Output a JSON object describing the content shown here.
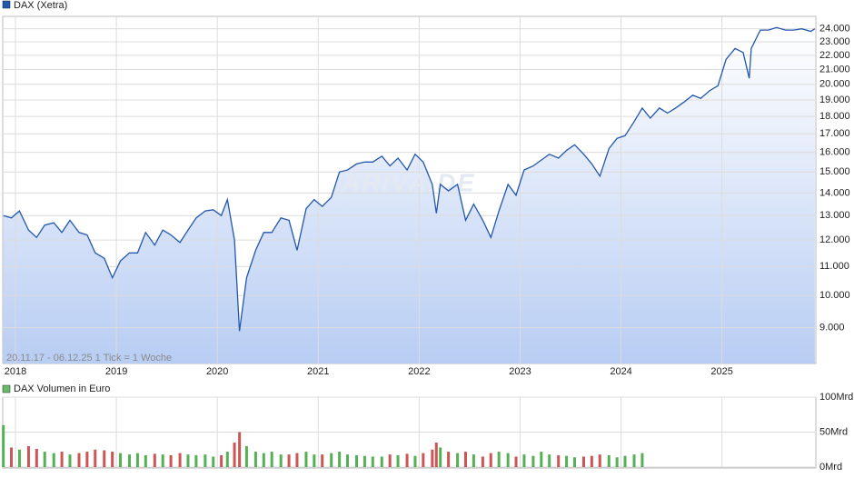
{
  "chart_data": [
    {
      "type": "line",
      "title": "DAX (Xetra)",
      "annotation": "20.11.17 - 06.12.25   1 Tick = 1 Woche",
      "watermark": "ARIVA.DE",
      "color": "#2257ad",
      "log_scale": true,
      "grid": true,
      "x": [
        2017.88,
        2017.96,
        2018.04,
        2018.13,
        2018.21,
        2018.29,
        2018.38,
        2018.46,
        2018.54,
        2018.63,
        2018.71,
        2018.79,
        2018.88,
        2018.96,
        2019.04,
        2019.13,
        2019.21,
        2019.29,
        2019.38,
        2019.46,
        2019.54,
        2019.63,
        2019.71,
        2019.79,
        2019.88,
        2019.96,
        2020.04,
        2020.1,
        2020.17,
        2020.22,
        2020.29,
        2020.38,
        2020.46,
        2020.54,
        2020.63,
        2020.71,
        2020.79,
        2020.88,
        2020.96,
        2021.04,
        2021.13,
        2021.21,
        2021.29,
        2021.38,
        2021.46,
        2021.54,
        2021.63,
        2021.71,
        2021.79,
        2021.88,
        2021.96,
        2022.04,
        2022.13,
        2022.17,
        2022.21,
        2022.29,
        2022.38,
        2022.46,
        2022.54,
        2022.63,
        2022.71,
        2022.79,
        2022.88,
        2022.96,
        2023.04,
        2023.13,
        2023.21,
        2023.29,
        2023.38,
        2023.46,
        2023.54,
        2023.63,
        2023.71,
        2023.79,
        2023.88,
        2023.96,
        2024.04,
        2024.13,
        2024.21,
        2024.29,
        2024.38,
        2024.46,
        2024.54,
        2024.63,
        2024.71,
        2024.79,
        2024.88,
        2024.96,
        2025.04,
        2025.13,
        2025.21,
        2025.27,
        2025.29,
        2025.38,
        2025.46,
        2025.54,
        2025.63,
        2025.71,
        2025.79,
        2025.88,
        2025.92
      ],
      "values": [
        13000,
        12900,
        13200,
        12400,
        12100,
        12600,
        12700,
        12300,
        12800,
        12300,
        12200,
        11500,
        11300,
        10600,
        11200,
        11500,
        11500,
        12300,
        11800,
        12400,
        12200,
        11900,
        12400,
        12900,
        13200,
        13250,
        13000,
        13700,
        12000,
        8900,
        10600,
        11600,
        12300,
        12300,
        12900,
        12800,
        11600,
        13300,
        13700,
        13400,
        13800,
        15000,
        15100,
        15400,
        15500,
        15500,
        15800,
        15300,
        15700,
        15100,
        15900,
        15500,
        14400,
        13100,
        14400,
        14100,
        14400,
        12800,
        13500,
        12800,
        12100,
        13200,
        14400,
        13900,
        15100,
        15300,
        15600,
        15900,
        15700,
        16100,
        16400,
        15900,
        15400,
        14800,
        16200,
        16750,
        16900,
        17700,
        18500,
        17900,
        18500,
        18200,
        18500,
        18900,
        19300,
        19100,
        19600,
        19900,
        21700,
        22500,
        22200,
        20400,
        22500,
        23900,
        23900,
        24100,
        23900,
        23900,
        24000,
        23800,
        24000
      ],
      "xlim": [
        2017.874,
        2025.93
      ],
      "xticks": [
        2018,
        2019,
        2020,
        2021,
        2022,
        2023,
        2024,
        2025
      ],
      "ylim": [
        8000,
        25000
      ],
      "yticks": [
        {
          "value": 9000,
          "label": "9.000"
        },
        {
          "value": 10000,
          "label": "10.000"
        },
        {
          "value": 11000,
          "label": "11.000"
        },
        {
          "value": 12000,
          "label": "12.000"
        },
        {
          "value": 13000,
          "label": "13.000"
        },
        {
          "value": 14000,
          "label": "14.000"
        },
        {
          "value": 15000,
          "label": "15.000"
        },
        {
          "value": 16000,
          "label": "16.000"
        },
        {
          "value": 17000,
          "label": "17.000"
        },
        {
          "value": 18000,
          "label": "18.000"
        },
        {
          "value": 19000,
          "label": "19.000"
        },
        {
          "value": 20000,
          "label": "20.000"
        },
        {
          "value": 21000,
          "label": "21.000"
        },
        {
          "value": 22000,
          "label": "22.000"
        },
        {
          "value": 23000,
          "label": "23.000"
        },
        {
          "value": 24000,
          "label": "24.000"
        }
      ]
    },
    {
      "type": "bar",
      "title": "DAX Volumen in Euro",
      "color": "#66bb66",
      "up_color": "#55b055",
      "down_color": "#cc5555",
      "values": [
        60,
        28,
        25,
        30,
        26,
        22,
        20,
        22,
        18,
        20,
        22,
        25,
        24,
        22,
        20,
        18,
        20,
        17,
        19,
        18,
        17,
        20,
        18,
        17,
        18,
        15,
        17,
        22,
        35,
        50,
        30,
        22,
        20,
        22,
        18,
        18,
        20,
        22,
        18,
        18,
        20,
        22,
        18,
        17,
        16,
        15,
        15,
        18,
        17,
        19,
        16,
        20,
        25,
        35,
        28,
        22,
        20,
        22,
        18,
        15,
        20,
        22,
        20,
        15,
        18,
        16,
        22,
        18,
        17,
        16,
        14,
        15,
        16,
        18,
        17,
        14,
        16,
        18,
        20,
        null,
        null,
        null,
        null,
        null,
        null,
        null,
        null,
        null,
        null,
        null,
        null,
        null,
        null,
        null,
        null,
        null,
        null,
        null,
        null,
        null,
        null,
        null
      ],
      "ylim": [
        0,
        100
      ],
      "yticks": [
        {
          "value": 0,
          "label": "0Mrd"
        },
        {
          "value": 50,
          "label": "50Mrd"
        },
        {
          "value": 100,
          "label": "100Mrd"
        }
      ]
    }
  ]
}
